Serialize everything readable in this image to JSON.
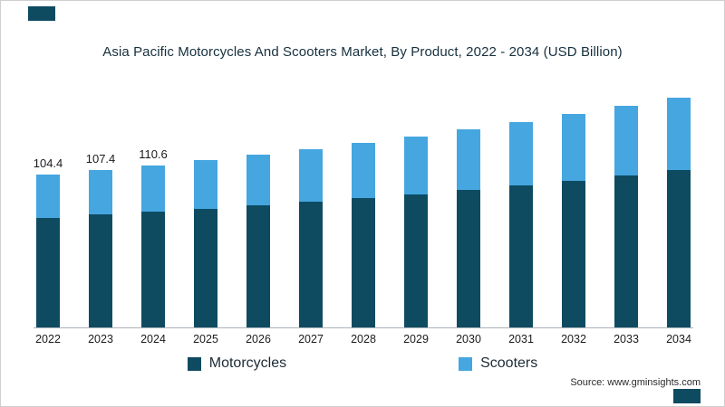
{
  "meta": {
    "title": "Asia Pacific Motorcycles And Scooters Market, By Product, 2022 - 2034 (USD Billion)",
    "source": "Source: www.gminsights.com"
  },
  "colors": {
    "motorcycles": "#0e4b61",
    "scooters": "#45a6e0",
    "accent": "#0e4b61",
    "axis_line": "#aab3ba"
  },
  "chart_data": {
    "type": "bar",
    "stacked": true,
    "title": "Asia Pacific Motorcycles And Scooters Market, By Product, 2022 - 2034 (USD Billion)",
    "xlabel": "",
    "ylabel": "",
    "legend_position": "bottom",
    "grid": false,
    "ylim": [
      0,
      165
    ],
    "categories": [
      "2022",
      "2023",
      "2024",
      "2025",
      "2026",
      "2027",
      "2028",
      "2029",
      "2030",
      "2031",
      "2032",
      "2033",
      "2034"
    ],
    "series": [
      {
        "name": "Motorcycles",
        "color_key": "motorcycles",
        "values": [
          75.0,
          76.9,
          78.9,
          81.0,
          83.3,
          85.7,
          88.3,
          91.0,
          93.9,
          97.0,
          100.3,
          103.8,
          107.5
        ]
      },
      {
        "name": "Scooters",
        "color_key": "scooters",
        "values": [
          29.4,
          30.5,
          31.7,
          33.0,
          34.5,
          36.1,
          37.7,
          39.5,
          41.3,
          43.2,
          45.2,
          47.2,
          49.3
        ]
      }
    ],
    "totals": [
      104.4,
      107.4,
      110.6,
      114.0,
      117.8,
      121.8,
      126.0,
      130.5,
      135.2,
      140.2,
      145.5,
      151.0,
      156.8
    ],
    "data_labels": [
      "104.4",
      "107.4",
      "110.6",
      "",
      "",
      "",
      "",
      "",
      "",
      "",
      "",
      "",
      ""
    ]
  }
}
